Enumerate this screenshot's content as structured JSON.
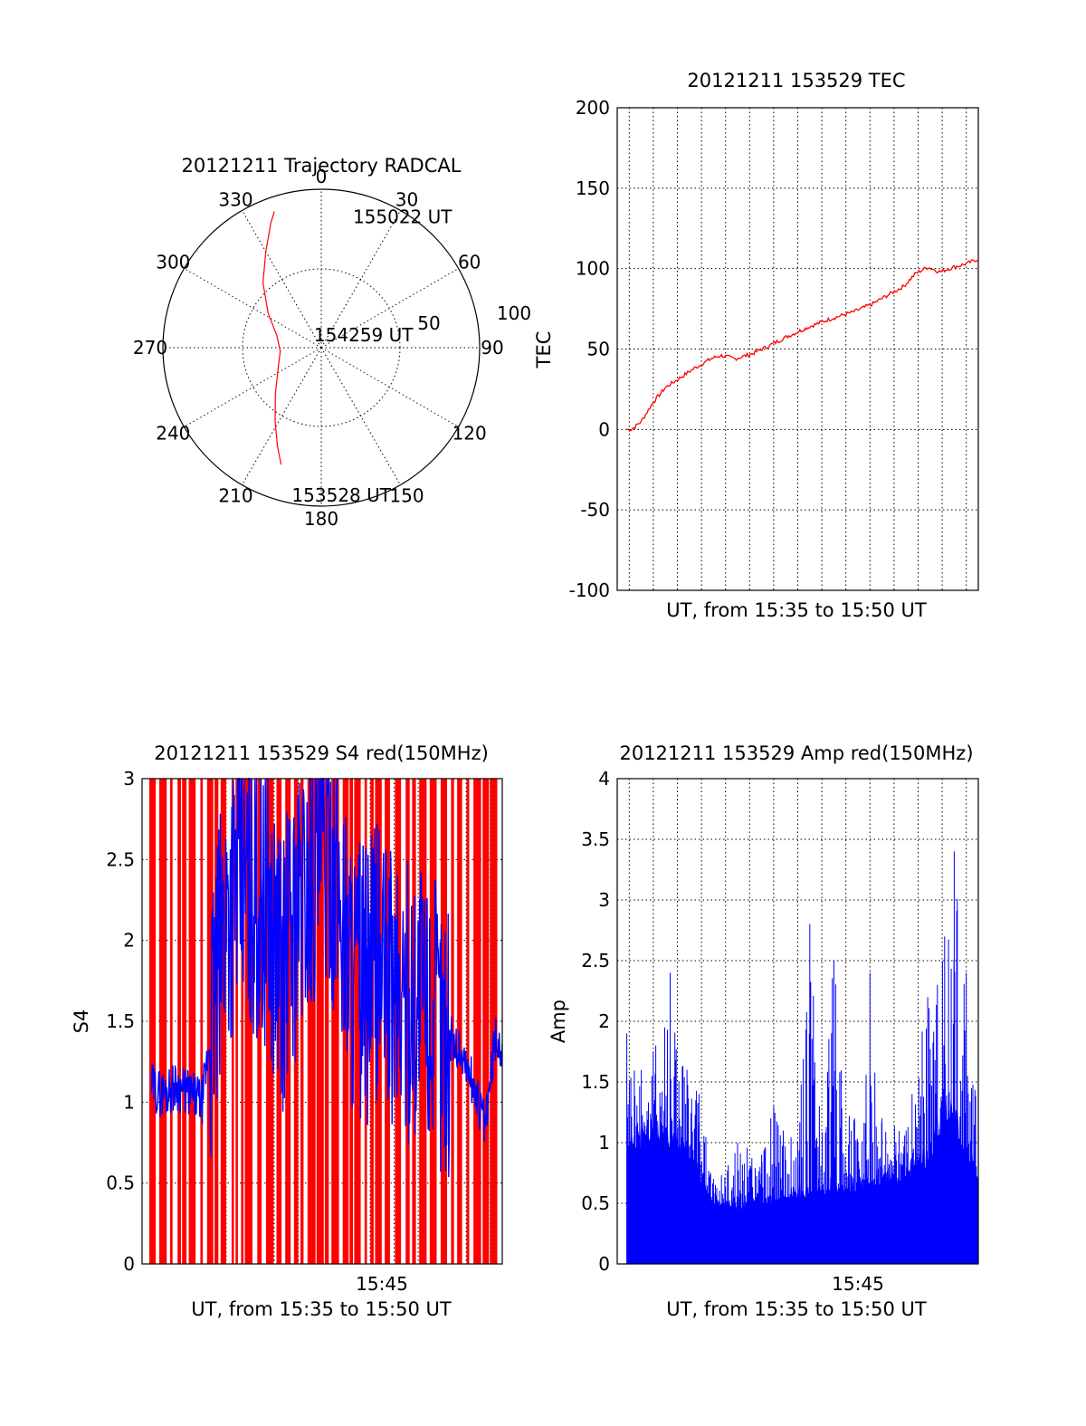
{
  "chart_data": [
    {
      "type": "polar",
      "title": "20121211 Trajectory RADCAL",
      "azimuth_labels": [
        "0",
        "30",
        "60",
        "90",
        "120",
        "150",
        "180",
        "210",
        "240",
        "270",
        "300",
        "330"
      ],
      "radius_labels": [
        "50",
        "100"
      ],
      "rlim": [
        0,
        100
      ],
      "grid": true,
      "series": [
        {
          "color": "#ff0000",
          "azimuth_deg": [
            199,
            204,
            212,
            225,
            245,
            265,
            285,
            303,
            318,
            330,
            338,
            341
          ],
          "zenith_deg": [
            78,
            68,
            55,
            41,
            30,
            26,
            29,
            40,
            55,
            70,
            85,
            91
          ]
        }
      ],
      "annotations": [
        {
          "text": "155022 UT",
          "az_deg": 15,
          "r": 86
        },
        {
          "text": "154259 UT",
          "az_deg": 345,
          "r": 9
        },
        {
          "text": "153528 UT",
          "az_deg": 190,
          "r": 94
        }
      ]
    },
    {
      "type": "line",
      "title": "20121211 153529 TEC",
      "xlabel": "UT, from 15:35 to 15:50 UT",
      "ylabel": "TEC",
      "xlim": [
        "15:35",
        "15:50"
      ],
      "ylim": [
        -100,
        200
      ],
      "yticks": [
        "200",
        "150",
        "100",
        "50",
        "0",
        "-50",
        "-100"
      ],
      "grid": true,
      "series": [
        {
          "color": "#ff0000",
          "x_min": [
            0.4,
            0.6,
            1.0,
            1.5,
            2.0,
            2.6,
            3.2,
            3.9,
            4.3,
            4.9,
            5.6,
            6.3,
            7.1,
            8.0,
            8.9,
            9.8,
            10.6,
            11.3,
            11.9,
            12.4,
            12.9,
            13.4,
            14.0,
            14.5,
            15.0
          ],
          "y": [
            0,
            0,
            5,
            17,
            26,
            32,
            38,
            44,
            46,
            44,
            47,
            52,
            58,
            64,
            69,
            73,
            78,
            84,
            89,
            97,
            101,
            98,
            101,
            103,
            106
          ]
        }
      ]
    },
    {
      "type": "line",
      "title": "20121211 153529 S4 red(150MHz)",
      "xlabel": "UT, from 15:35 to 15:50 UT",
      "ylabel": "S4",
      "xlim": [
        "15:35",
        "15:50"
      ],
      "ylim": [
        0,
        3
      ],
      "yticks": [
        "3",
        "2.5",
        "2",
        "1.5",
        "1",
        "0.5",
        "0"
      ],
      "xticks": [
        "15:45"
      ],
      "grid": true,
      "series": [
        {
          "color": "#0000ff",
          "x_min": [
            0.4,
            0.8,
            1.4,
            2.0,
            2.5,
            3.0,
            3.5,
            4.0,
            4.6,
            5.2,
            5.8,
            6.3,
            6.8,
            7.3,
            7.8,
            8.3,
            8.8,
            9.3,
            9.8,
            10.4,
            11.0,
            11.6,
            12.2,
            12.8,
            13.3,
            13.8,
            14.3,
            14.7,
            15.0
          ],
          "y": [
            1.1,
            1.05,
            1.1,
            1.05,
            1.0,
            1.6,
            2.2,
            2.4,
            2.3,
            2.2,
            1.8,
            2.1,
            2.3,
            2.5,
            2.6,
            2.2,
            1.8,
            1.7,
            1.9,
            1.7,
            1.6,
            1.7,
            1.5,
            1.4,
            1.3,
            1.1,
            0.85,
            1.4,
            1.3
          ]
        }
      ],
      "background_color": "#ff0000"
    },
    {
      "type": "line",
      "title": "20121211 153529 Amp red(150MHz)",
      "xlabel": "UT, from 15:35 to 15:50 UT",
      "ylabel": "Amp",
      "xlim": [
        "15:35",
        "15:50"
      ],
      "ylim": [
        0,
        4
      ],
      "yticks": [
        "4",
        "3.5",
        "3",
        "2.5",
        "2",
        "1.5",
        "1",
        "0.5",
        "0"
      ],
      "xticks": [
        "15:45"
      ],
      "grid": true,
      "series": [
        {
          "color": "#0000ff",
          "x_min": [
            0.4,
            1.0,
            1.6,
            2.2,
            2.9,
            3.4,
            4.0,
            5.0,
            6.0,
            6.5,
            6.9,
            7.5,
            8.0,
            8.4,
            9.0,
            10.0,
            10.5,
            11.0,
            12.0,
            12.9,
            13.3,
            13.6,
            14.0,
            14.5,
            15.0
          ],
          "y_peak": [
            1.9,
            1.6,
            1.8,
            2.4,
            1.6,
            1.4,
            0.7,
            1.0,
            0.9,
            1.3,
            1.1,
            1.0,
            2.8,
            1.3,
            2.5,
            1.0,
            2.4,
            1.2,
            1.1,
            2.2,
            2.3,
            2.7,
            3.4,
            2.4,
            1.2
          ],
          "y_base": [
            0.95,
            0.95,
            1.0,
            0.95,
            0.9,
            0.7,
            0.5,
            0.45,
            0.5,
            0.5,
            0.55,
            0.55,
            0.55,
            0.55,
            0.6,
            0.6,
            0.65,
            0.65,
            0.7,
            0.8,
            1.0,
            1.2,
            1.1,
            0.9,
            0.7
          ]
        }
      ]
    }
  ]
}
